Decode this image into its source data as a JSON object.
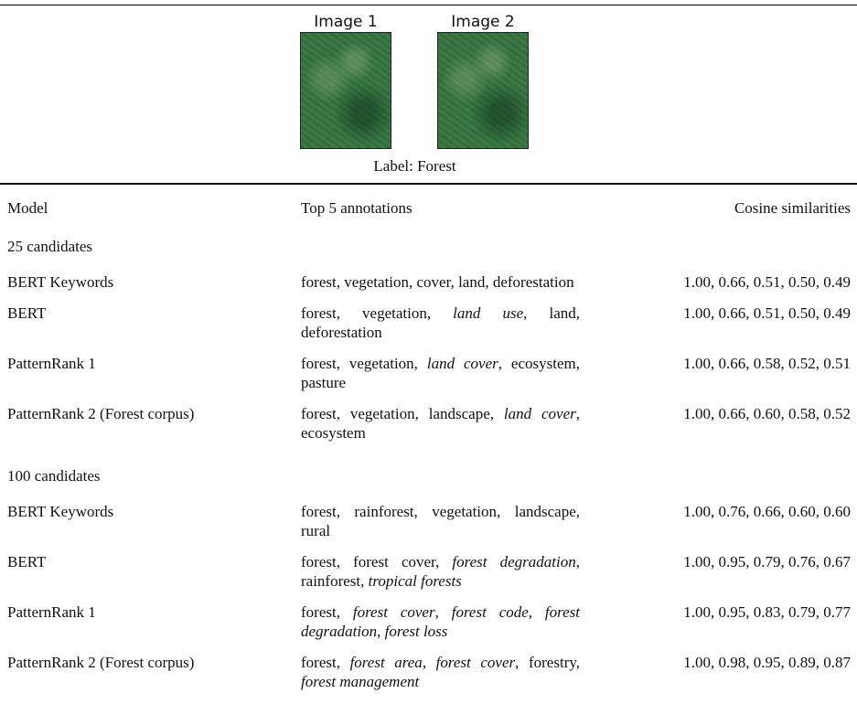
{
  "figure": {
    "images": [
      "Image 1",
      "Image 2"
    ],
    "label": "Label: Forest"
  },
  "table": {
    "headers": [
      "Model",
      "Top 5 annotations",
      "Cosine similarities"
    ],
    "sections": [
      {
        "title": "25 candidates",
        "rows": [
          {
            "model": "BERT Keywords",
            "annotations": [
              {
                "text": "forest, vegetation, cover, land, deforestation",
                "italic": false
              }
            ],
            "similarities": "1.00, 0.66, 0.51, 0.50, 0.49"
          },
          {
            "model": "BERT",
            "annotations": [
              {
                "text": "forest, vegetation, ",
                "italic": false
              },
              {
                "text": "land use",
                "italic": true
              },
              {
                "text": ", land, deforestation",
                "italic": false
              }
            ],
            "similarities": "1.00, 0.66, 0.51, 0.50, 0.49"
          },
          {
            "model": "PatternRank 1",
            "annotations": [
              {
                "text": "forest, vegetation, ",
                "italic": false
              },
              {
                "text": "land cover",
                "italic": true
              },
              {
                "text": ", ecosystem, pasture",
                "italic": false
              }
            ],
            "similarities": "1.00, 0.66, 0.58, 0.52, 0.51"
          },
          {
            "model": "PatternRank 2 (Forest corpus)",
            "annotations": [
              {
                "text": "forest, vegetation, landscape, ",
                "italic": false
              },
              {
                "text": "land cover",
                "italic": true
              },
              {
                "text": ", ecosystem",
                "italic": false
              }
            ],
            "similarities": "1.00, 0.66, 0.60, 0.58, 0.52"
          }
        ]
      },
      {
        "title": "100 candidates",
        "rows": [
          {
            "model": "BERT Keywords",
            "annotations": [
              {
                "text": "forest, rainforest, vegetation, land­scape, rural",
                "italic": false
              }
            ],
            "similarities": "1.00, 0.76, 0.66, 0.60, 0.60"
          },
          {
            "model": "BERT",
            "annotations": [
              {
                "text": "forest, forest cover, ",
                "italic": false
              },
              {
                "text": "forest degrada­tion",
                "italic": true
              },
              {
                "text": ", rainforest, ",
                "italic": false
              },
              {
                "text": "tropical forests",
                "italic": true
              }
            ],
            "similarities": "1.00, 0.95, 0.79, 0.76, 0.67"
          },
          {
            "model": "PatternRank 1",
            "annotations": [
              {
                "text": "forest, ",
                "italic": false
              },
              {
                "text": "forest cover",
                "italic": true
              },
              {
                "text": ", ",
                "italic": false
              },
              {
                "text": "forest code",
                "italic": true
              },
              {
                "text": ", ",
                "italic": false
              },
              {
                "text": "for­est degradation",
                "italic": true
              },
              {
                "text": ", ",
                "italic": false
              },
              {
                "text": "forest loss",
                "italic": true
              }
            ],
            "similarities": "1.00, 0.95, 0.83, 0.79, 0.77"
          },
          {
            "model": "PatternRank 2 (Forest corpus)",
            "annotations": [
              {
                "text": "forest, ",
                "italic": false
              },
              {
                "text": "forest area",
                "italic": true
              },
              {
                "text": ", ",
                "italic": false
              },
              {
                "text": "forest cover",
                "italic": true
              },
              {
                "text": ", forestry, ",
                "italic": false
              },
              {
                "text": "forest management",
                "italic": true
              }
            ],
            "similarities": "1.00, 0.98, 0.95, 0.89, 0.87"
          }
        ]
      }
    ]
  }
}
